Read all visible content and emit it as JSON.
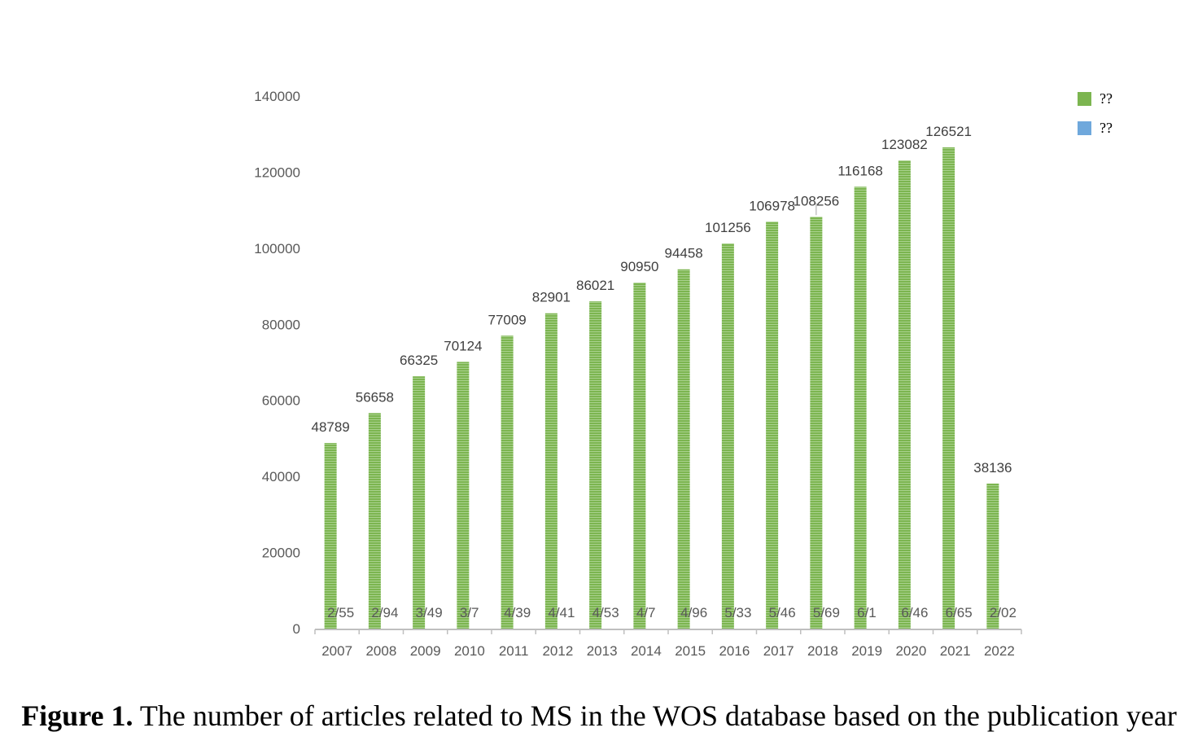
{
  "chart_data": {
    "type": "bar",
    "categories": [
      "2007",
      "2008",
      "2009",
      "2010",
      "2011",
      "2012",
      "2013",
      "2014",
      "2015",
      "2016",
      "2017",
      "2018",
      "2019",
      "2020",
      "2021",
      "2022"
    ],
    "series": [
      {
        "name": "??",
        "color": "#7CB550",
        "values": [
          48789,
          56658,
          66325,
          70124,
          77009,
          82901,
          86021,
          90950,
          94458,
          101256,
          106978,
          108256,
          116168,
          123082,
          126521,
          38136
        ]
      },
      {
        "name": "??",
        "color": "#6FA8DC",
        "labels": [
          "2/55",
          "2/94",
          "3/49",
          "3/7",
          "4/39",
          "4/41",
          "4/53",
          "4/7",
          "4/96",
          "5/33",
          "5/46",
          "5/69",
          "6/1",
          "6/46",
          "6/65",
          "2/02"
        ]
      }
    ],
    "y_ticks": [
      "0",
      "20000",
      "40000",
      "60000",
      "80000",
      "100000",
      "120000",
      "140000"
    ],
    "ylim": [
      0,
      140000
    ],
    "legend_position": "top-right",
    "grid": false
  },
  "caption": {
    "prefix": "Figure 1.",
    "text": " The number of articles related to MS in the WOS database based on the publication year"
  }
}
